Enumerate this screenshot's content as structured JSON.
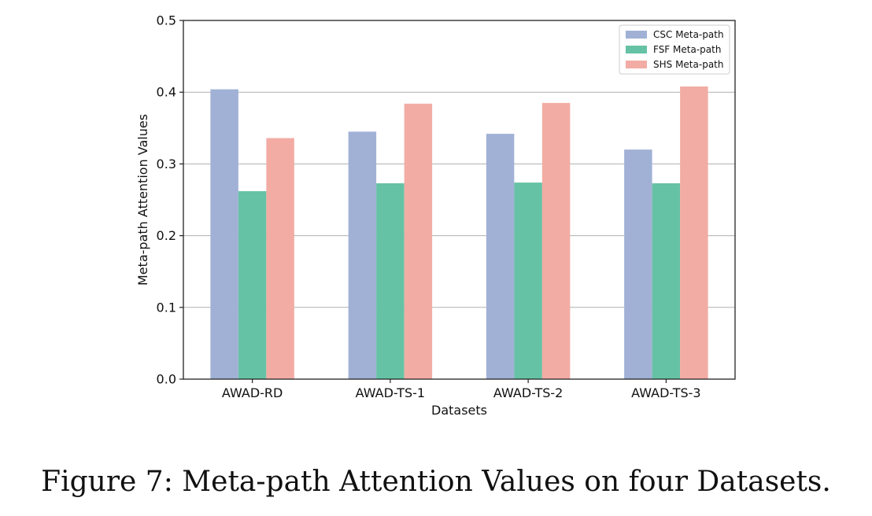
{
  "caption": "Figure 7: Meta-path Attention Values on four Datasets.",
  "colors": {
    "series": [
      "#a1b1d6",
      "#66c2a5",
      "#f2aca4"
    ]
  },
  "chart_data": {
    "type": "bar",
    "title": "",
    "xlabel": "Datasets",
    "ylabel": "Meta-path Attention Values",
    "categories": [
      "AWAD-RD",
      "AWAD-TS-1",
      "AWAD-TS-2",
      "AWAD-TS-3"
    ],
    "series": [
      {
        "name": "CSC Meta-path",
        "values": [
          0.404,
          0.345,
          0.342,
          0.32
        ]
      },
      {
        "name": "FSF Meta-path",
        "values": [
          0.262,
          0.273,
          0.274,
          0.273
        ]
      },
      {
        "name": "SHS Meta-path",
        "values": [
          0.336,
          0.384,
          0.385,
          0.408
        ]
      }
    ],
    "ylim": [
      0,
      0.5
    ],
    "yticks": [
      "0.0",
      "0.1",
      "0.2",
      "0.3",
      "0.4",
      "0.5"
    ],
    "grid": "horizontal",
    "legend_position": "top-right"
  }
}
